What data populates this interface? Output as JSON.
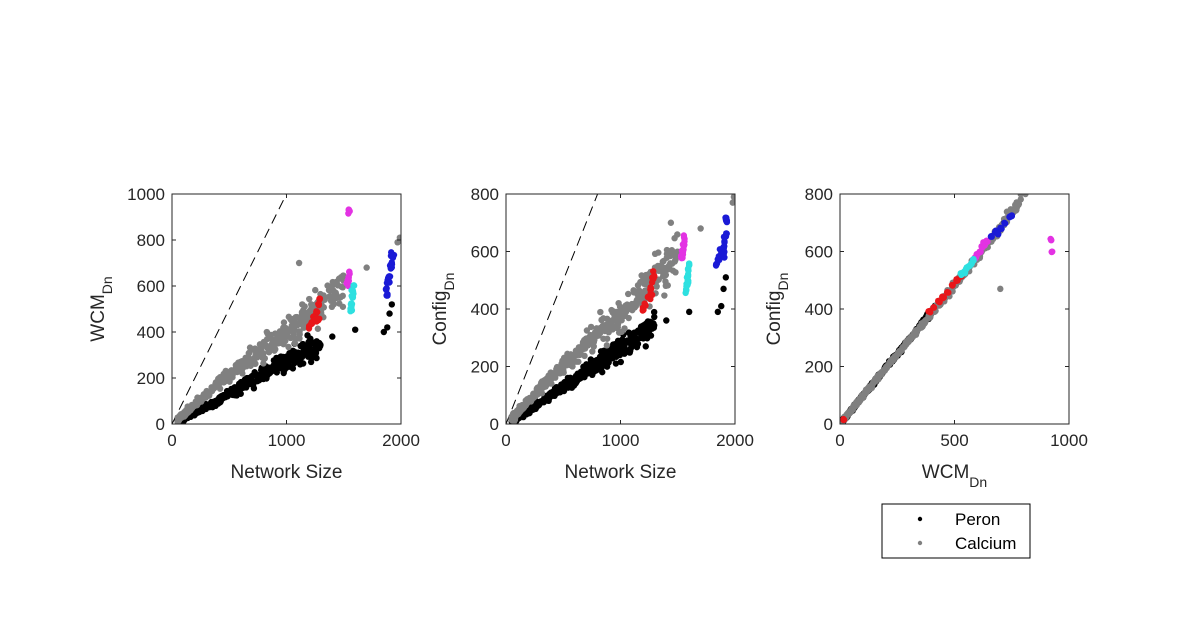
{
  "colors": {
    "peron": "#000000",
    "calcium": "#808080",
    "red": "#e8161a",
    "magenta": "#e332e3",
    "cyan": "#2ee0e0",
    "blue": "#1a1ad6"
  },
  "legend": {
    "placement": "below-right-panel",
    "entries": [
      {
        "label": "Peron",
        "color": "#000000"
      },
      {
        "label": "Calcium",
        "color": "#808080"
      }
    ]
  },
  "chart_data": [
    {
      "type": "scatter",
      "id": "panel-1",
      "xlabel": "Network Size",
      "ylabel_main": "WCM",
      "ylabel_sub": "Dn",
      "xlim": [
        0,
        2000
      ],
      "ylim": [
        0,
        1000
      ],
      "xticks": [
        0,
        1000,
        2000
      ],
      "yticks": [
        0,
        200,
        400,
        600,
        800,
        1000
      ],
      "reference_line": {
        "style": "dashed",
        "points": [
          [
            0,
            0
          ],
          [
            1000,
            1000
          ]
        ]
      },
      "series": [
        {
          "name": "Peron",
          "color": "#000000",
          "trend": [
            [
              50,
              10
            ],
            [
              400,
              100
            ],
            [
              800,
              220
            ],
            [
              1100,
              300
            ],
            [
              1300,
              350
            ]
          ],
          "extra_points": [
            [
              1400,
              380
            ],
            [
              1600,
              410
            ],
            [
              1850,
              400
            ],
            [
              1880,
              420
            ],
            [
              1900,
              480
            ],
            [
              1920,
              520
            ]
          ]
        },
        {
          "name": "Calcium",
          "color": "#808080",
          "trend": [
            [
              50,
              20
            ],
            [
              400,
              170
            ],
            [
              800,
              330
            ],
            [
              1100,
              430
            ],
            [
              1300,
              520
            ],
            [
              1500,
              600
            ]
          ],
          "extra_points": [
            [
              1110,
              700
            ],
            [
              1700,
              680
            ],
            [
              1970,
              790
            ],
            [
              1990,
              810
            ]
          ]
        },
        {
          "color": "#e8161a",
          "points": [
            [
              1200,
              420
            ],
            [
              1220,
              440
            ],
            [
              1240,
              460
            ],
            [
              1260,
              490
            ],
            [
              1280,
              520
            ],
            [
              1290,
              540
            ],
            [
              1280,
              460
            ],
            [
              1260,
              450
            ]
          ]
        },
        {
          "color": "#e332e3",
          "points": [
            [
              1530,
              620
            ],
            [
              1545,
              640
            ],
            [
              1550,
              660
            ],
            [
              1540,
              600
            ],
            [
              1550,
              930
            ],
            [
              1545,
              925
            ]
          ]
        },
        {
          "color": "#2ee0e0",
          "points": [
            [
              1560,
              490
            ],
            [
              1570,
              520
            ],
            [
              1575,
              550
            ],
            [
              1580,
              580
            ],
            [
              1585,
              600
            ],
            [
              1565,
              500
            ],
            [
              1578,
              560
            ]
          ]
        },
        {
          "color": "#1a1ad6",
          "points": [
            [
              1870,
              590
            ],
            [
              1880,
              620
            ],
            [
              1890,
              630
            ],
            [
              1900,
              650
            ],
            [
              1910,
              680
            ],
            [
              1920,
              700
            ],
            [
              1930,
              730
            ],
            [
              1920,
              740
            ],
            [
              1900,
              610
            ],
            [
              1880,
              570
            ]
          ]
        }
      ]
    },
    {
      "type": "scatter",
      "id": "panel-2",
      "xlabel": "Network Size",
      "ylabel_main": "Config",
      "ylabel_sub": "Dn",
      "xlim": [
        0,
        2000
      ],
      "ylim": [
        0,
        800
      ],
      "xticks": [
        0,
        1000,
        2000
      ],
      "yticks": [
        0,
        200,
        400,
        600,
        800
      ],
      "reference_line": {
        "style": "dashed",
        "points": [
          [
            0,
            0
          ],
          [
            800,
            800
          ]
        ]
      },
      "series": [
        {
          "name": "Peron",
          "color": "#000000",
          "trend": [
            [
              50,
              10
            ],
            [
              400,
              100
            ],
            [
              800,
              210
            ],
            [
              1100,
              290
            ],
            [
              1300,
              340
            ]
          ],
          "extra_points": [
            [
              1400,
              360
            ],
            [
              1600,
              390
            ],
            [
              1850,
              390
            ],
            [
              1880,
              410
            ],
            [
              1900,
              470
            ],
            [
              1920,
              510
            ]
          ]
        },
        {
          "name": "Calcium",
          "color": "#808080",
          "trend": [
            [
              50,
              20
            ],
            [
              400,
              165
            ],
            [
              800,
              320
            ],
            [
              1100,
              410
            ],
            [
              1300,
              500
            ],
            [
              1500,
              580
            ]
          ],
          "extra_points": [
            [
              1440,
              700
            ],
            [
              1700,
              680
            ],
            [
              1980,
              770
            ],
            [
              1990,
              790
            ]
          ]
        },
        {
          "color": "#e8161a",
          "points": [
            [
              1200,
              400
            ],
            [
              1220,
              420
            ],
            [
              1240,
              440
            ],
            [
              1260,
              470
            ],
            [
              1280,
              500
            ],
            [
              1290,
              520
            ],
            [
              1270,
              440
            ]
          ]
        },
        {
          "color": "#e332e3",
          "points": [
            [
              1530,
              580
            ],
            [
              1540,
              600
            ],
            [
              1550,
              620
            ],
            [
              1555,
              640
            ],
            [
              1545,
              590
            ],
            [
              1550,
              630
            ]
          ]
        },
        {
          "color": "#2ee0e0",
          "points": [
            [
              1570,
              460
            ],
            [
              1580,
              480
            ],
            [
              1585,
              500
            ],
            [
              1590,
              520
            ],
            [
              1595,
              540
            ],
            [
              1600,
              560
            ],
            [
              1590,
              490
            ]
          ]
        },
        {
          "color": "#1a1ad6",
          "points": [
            [
              1840,
              560
            ],
            [
              1860,
              580
            ],
            [
              1880,
              600
            ],
            [
              1900,
              620
            ],
            [
              1910,
              640
            ],
            [
              1920,
              660
            ],
            [
              1930,
              700
            ],
            [
              1920,
              720
            ],
            [
              1900,
              590
            ]
          ]
        }
      ]
    },
    {
      "type": "scatter",
      "id": "panel-3",
      "xlabel_main": "WCM",
      "xlabel_sub": "Dn",
      "ylabel_main": "Config",
      "ylabel_sub": "Dn",
      "xlim": [
        0,
        1000
      ],
      "ylim": [
        0,
        800
      ],
      "xticks": [
        0,
        500,
        1000
      ],
      "yticks": [
        0,
        200,
        400,
        600,
        800
      ],
      "reference_line": {
        "style": "dashed",
        "points": [
          [
            0,
            0
          ],
          [
            800,
            800
          ]
        ]
      },
      "series": [
        {
          "name": "Peron",
          "color": "#000000",
          "trend": [
            [
              10,
              10
            ],
            [
              200,
              195
            ],
            [
              350,
              340
            ],
            [
              420,
              410
            ]
          ],
          "extra_points": []
        },
        {
          "name": "Calcium",
          "color": "#808080",
          "trend": [
            [
              10,
              10
            ],
            [
              200,
              195
            ],
            [
              400,
              385
            ],
            [
              600,
              580
            ],
            [
              790,
              780
            ]
          ],
          "extra_points": [
            [
              700,
              470
            ],
            [
              810,
              800
            ]
          ]
        },
        {
          "color": "#e8161a",
          "points": [
            [
              390,
              390
            ],
            [
              410,
              405
            ],
            [
              430,
              425
            ],
            [
              450,
              440
            ],
            [
              470,
              460
            ],
            [
              490,
              480
            ],
            [
              510,
              500
            ],
            [
              530,
              515
            ],
            [
              15,
              15
            ]
          ]
        },
        {
          "color": "#e332e3",
          "points": [
            [
              590,
              580
            ],
            [
              600,
              590
            ],
            [
              610,
              600
            ],
            [
              620,
              615
            ],
            [
              630,
              625
            ],
            [
              640,
              635
            ],
            [
              920,
              640
            ],
            [
              925,
              600
            ]
          ]
        },
        {
          "color": "#2ee0e0",
          "points": [
            [
              530,
              520
            ],
            [
              545,
              530
            ],
            [
              555,
              540
            ],
            [
              565,
              550
            ],
            [
              575,
              560
            ],
            [
              585,
              570
            ]
          ]
        },
        {
          "color": "#1a1ad6",
          "points": [
            [
              660,
              650
            ],
            [
              680,
              670
            ],
            [
              700,
              680
            ],
            [
              720,
              700
            ],
            [
              740,
              720
            ],
            [
              750,
              725
            ],
            [
              690,
              660
            ]
          ]
        }
      ]
    }
  ]
}
